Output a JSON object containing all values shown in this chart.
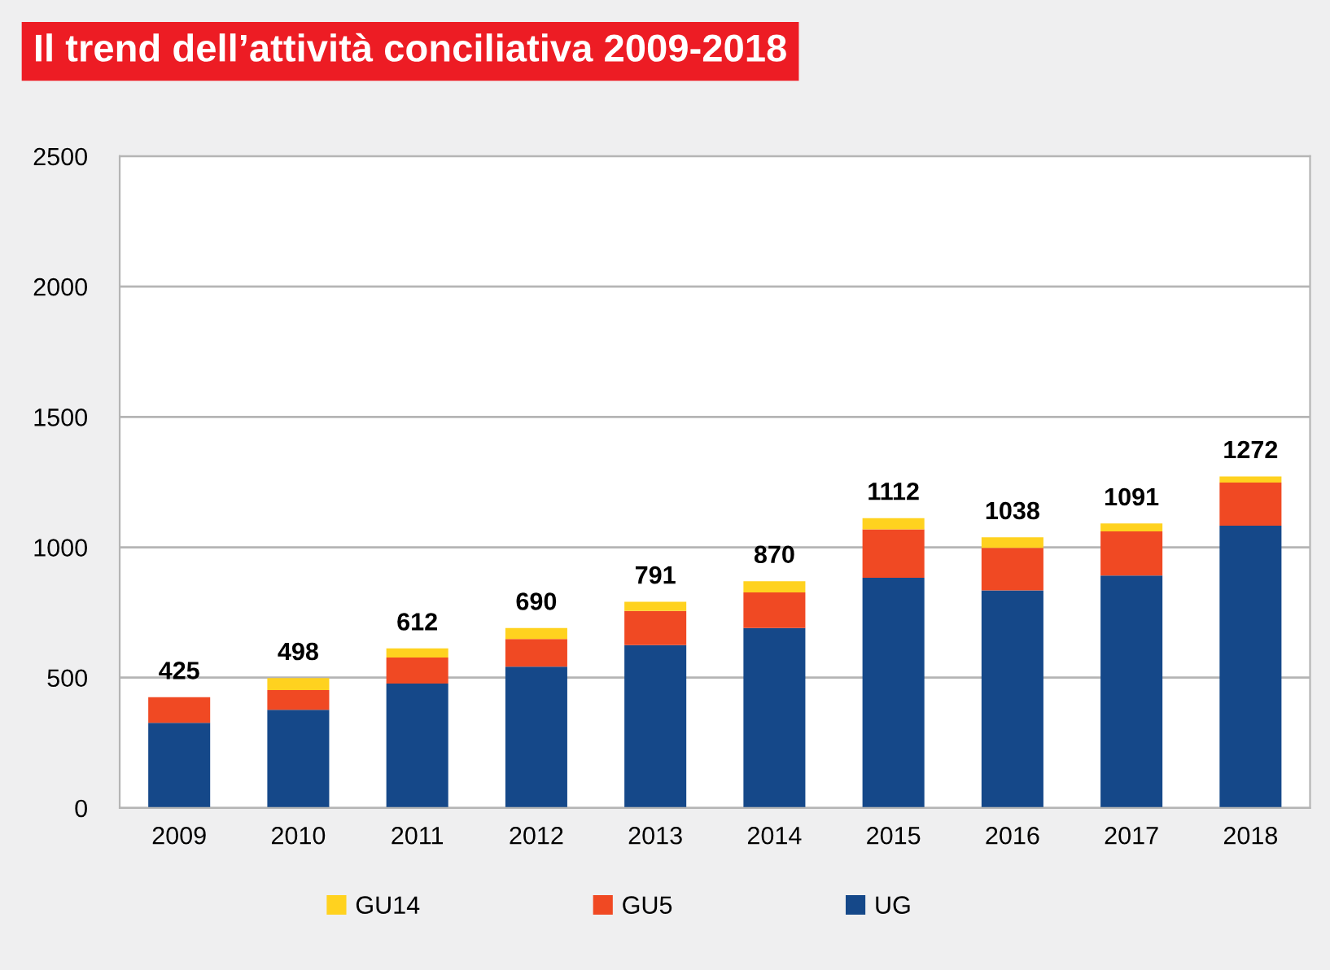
{
  "chart_data": {
    "type": "bar",
    "title": "Il trend dell’attività conciliativa 2009-2018",
    "categories": [
      "2009",
      "2010",
      "2011",
      "2012",
      "2013",
      "2014",
      "2015",
      "2016",
      "2017",
      "2018"
    ],
    "stacked": true,
    "series": [
      {
        "name": "UG",
        "color": "#154889",
        "values": [
          327,
          377,
          477,
          542,
          625,
          690,
          883,
          835,
          892,
          1083
        ]
      },
      {
        "name": "GU5",
        "color": "#f04923",
        "values": [
          98,
          75,
          100,
          106,
          131,
          137,
          186,
          163,
          169,
          165
        ]
      },
      {
        "name": "GU14",
        "color": "#ffd21f",
        "values": [
          0,
          46,
          35,
          42,
          35,
          43,
          43,
          40,
          30,
          24
        ]
      }
    ],
    "totals": [
      "425",
      "498",
      "612",
      "690",
      "791",
      "870",
      "1112",
      "1038",
      "1091",
      "1272"
    ],
    "ylim": [
      0,
      2500
    ],
    "yticks": [
      0,
      500,
      1000,
      1500,
      2000,
      2500
    ],
    "grid": "y",
    "legend": "bottom"
  }
}
